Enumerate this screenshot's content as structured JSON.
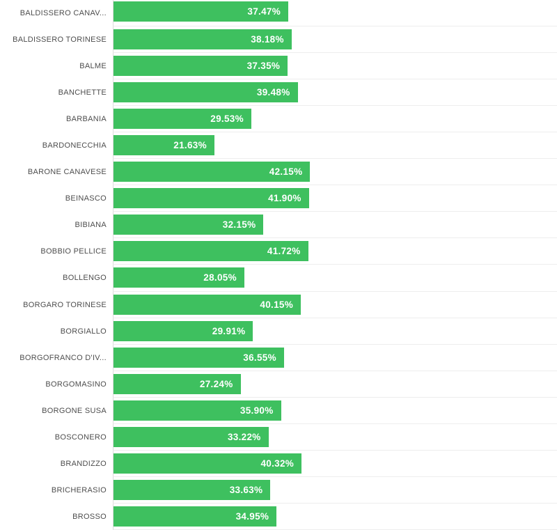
{
  "chart_data": {
    "type": "bar",
    "orientation": "horizontal",
    "title": "",
    "xlabel": "",
    "ylabel": "",
    "legend": "none",
    "grid": "row-separator-lines",
    "xlim": [
      0,
      100
    ],
    "categories": [
      "BALDISSERO CANAV...",
      "BALDISSERO TORINESE",
      "BALME",
      "BANCHETTE",
      "BARBANIA",
      "BARDONECCHIA",
      "BARONE CANAVESE",
      "BEINASCO",
      "BIBIANA",
      "BOBBIO PELLICE",
      "BOLLENGO",
      "BORGARO TORINESE",
      "BORGIALLO",
      "BORGOFRANCO D'IV...",
      "BORGOMASINO",
      "BORGONE SUSA",
      "BOSCONERO",
      "BRANDIZZO",
      "BRICHERASIO",
      "BROSSO"
    ],
    "values": [
      37.47,
      38.18,
      37.35,
      39.48,
      29.53,
      21.63,
      42.15,
      41.9,
      32.15,
      41.72,
      28.05,
      40.15,
      29.91,
      36.55,
      27.24,
      35.9,
      33.22,
      40.32,
      33.63,
      34.95
    ],
    "value_labels": [
      "37.47%",
      "38.18%",
      "37.35%",
      "39.48%",
      "29.53%",
      "21.63%",
      "42.15%",
      "41.90%",
      "32.15%",
      "41.72%",
      "28.05%",
      "40.15%",
      "29.91%",
      "36.55%",
      "27.24%",
      "35.90%",
      "33.22%",
      "40.32%",
      "33.63%",
      "34.95%"
    ],
    "colors": {
      "bar": "#3ec05f",
      "value_label": "#ffffff",
      "category_label": "#4d4d4d",
      "separator_line": "#ededed",
      "axis_line": "#dcdcdc",
      "background": "#ffffff"
    }
  }
}
